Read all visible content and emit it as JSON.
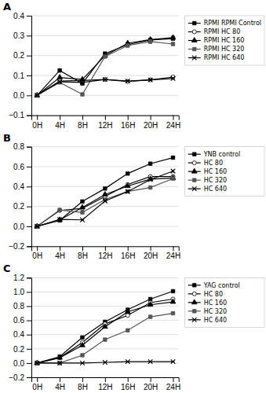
{
  "chart_data": [
    {
      "type": "line",
      "title": "A",
      "x": [
        0,
        4,
        8,
        12,
        16,
        20,
        24
      ],
      "xlim": [
        -1,
        25
      ],
      "xticks": [
        {
          "value": 0,
          "label": "0H"
        },
        {
          "value": 4,
          "label": "4H"
        },
        {
          "value": 8,
          "label": "8H"
        },
        {
          "value": 12,
          "label": "12H"
        },
        {
          "value": 16,
          "label": "16H"
        },
        {
          "value": 20,
          "label": "20H"
        },
        {
          "value": 24,
          "label": "24H"
        }
      ],
      "ylim": [
        -0.1,
        0.4
      ],
      "yticks": [
        {
          "value": -0.1,
          "label": "−0.1"
        },
        {
          "value": 0,
          "label": "0.0"
        },
        0.1,
        0.2,
        0.3,
        0.4
      ],
      "grid": true,
      "legend": "right",
      "series": [
        {
          "name": "RPMI RPMI Control",
          "color": "#000000",
          "marker": "square",
          "line_style": "solid",
          "values": [
            0.0,
            0.125,
            0.06,
            0.21,
            0.255,
            0.278,
            0.285
          ],
          "errors": [
            0.003,
            0.007,
            0.007,
            0.007,
            0.007,
            0.009,
            0.007
          ]
        },
        {
          "name": "RPMI HC 80",
          "color": "#000000",
          "marker": "circle-open",
          "line_style": "solid",
          "values": [
            0.0,
            0.072,
            0.075,
            0.08,
            0.07,
            0.078,
            0.092
          ],
          "errors": [
            0.002,
            0.004,
            0.004,
            0.004,
            0.003,
            0.003,
            0.004
          ]
        },
        {
          "name": "RPMI HC 160",
          "color": "#000000",
          "marker": "triangle",
          "line_style": "solid",
          "values": [
            0.0,
            0.09,
            0.08,
            0.2,
            0.262,
            0.28,
            0.29
          ],
          "errors": [
            0.002,
            0.005,
            0.005,
            0.006,
            0.006,
            0.008,
            0.007
          ]
        },
        {
          "name": "RPMI HC 320",
          "color": "#555555",
          "marker": "square",
          "line_style": "solid",
          "values": [
            0.0,
            0.065,
            0.005,
            0.195,
            0.25,
            0.27,
            0.258
          ],
          "errors": [
            0.002,
            0.004,
            0.003,
            0.006,
            0.007,
            0.009,
            0.007
          ]
        },
        {
          "name": "RPMI HC 640",
          "color": "#000000",
          "marker": "x",
          "line_style": "solid",
          "values": [
            0.0,
            0.068,
            0.065,
            0.08,
            0.072,
            0.078,
            0.085
          ],
          "errors": [
            0.002,
            0.004,
            0.004,
            0.004,
            0.003,
            0.003,
            0.004
          ]
        }
      ]
    },
    {
      "type": "line",
      "title": "B",
      "x": [
        0,
        4,
        8,
        12,
        16,
        20,
        24
      ],
      "xlim": [
        -1,
        25
      ],
      "xticks": [
        {
          "value": 0,
          "label": "0H"
        },
        {
          "value": 4,
          "label": "4H"
        },
        {
          "value": 8,
          "label": "8H"
        },
        {
          "value": 12,
          "label": "12H"
        },
        {
          "value": 16,
          "label": "16H"
        },
        {
          "value": 20,
          "label": "20H"
        },
        {
          "value": 24,
          "label": "24H"
        }
      ],
      "ylim": [
        -0.2,
        0.8
      ],
      "yticks": [
        {
          "value": -0.2,
          "label": "−0.2"
        },
        {
          "value": 0,
          "label": "0.0"
        },
        0.2,
        0.4,
        0.6,
        0.8
      ],
      "grid": true,
      "legend": "right",
      "series": [
        {
          "name": "YNB control",
          "color": "#000000",
          "marker": "square",
          "line_style": "solid",
          "values": [
            0.0,
            0.06,
            0.25,
            0.38,
            0.53,
            0.63,
            0.69
          ],
          "errors": [
            0.003,
            0.004,
            0.007,
            0.009,
            0.009,
            0.011,
            0.011
          ]
        },
        {
          "name": "HC 80",
          "color": "#000000",
          "marker": "circle-open",
          "line_style": "solid",
          "values": [
            0.0,
            0.16,
            0.18,
            0.3,
            0.42,
            0.5,
            0.5
          ],
          "errors": [
            0.003,
            0.006,
            0.007,
            0.009,
            0.009,
            0.011,
            0.011
          ]
        },
        {
          "name": "HC 160",
          "color": "#000000",
          "marker": "triangle",
          "line_style": "solid",
          "values": [
            0.0,
            0.065,
            0.19,
            0.32,
            0.405,
            0.475,
            0.485
          ],
          "errors": [
            0.002,
            0.004,
            0.007,
            0.009,
            0.009,
            0.009,
            0.009
          ]
        },
        {
          "name": "HC 320",
          "color": "#555555",
          "marker": "square",
          "line_style": "solid",
          "values": [
            0.0,
            0.165,
            0.14,
            0.27,
            0.35,
            0.39,
            0.48
          ],
          "errors": [
            0.002,
            0.006,
            0.006,
            0.008,
            0.008,
            0.009,
            0.009
          ]
        },
        {
          "name": "HC 640",
          "color": "#000000",
          "marker": "x",
          "line_style": "solid",
          "values": [
            0.0,
            0.07,
            0.065,
            0.255,
            0.35,
            0.47,
            0.555
          ],
          "errors": [
            0.002,
            0.004,
            0.004,
            0.008,
            0.008,
            0.009,
            0.009
          ]
        }
      ]
    },
    {
      "type": "line",
      "title": "C",
      "x": [
        0,
        4,
        8,
        12,
        16,
        20,
        24
      ],
      "xlim": [
        -1,
        25
      ],
      "xticks": [
        {
          "value": 0,
          "label": "0H"
        },
        {
          "value": 4,
          "label": "4H"
        },
        {
          "value": 8,
          "label": "8H"
        },
        {
          "value": 12,
          "label": "12H"
        },
        {
          "value": 16,
          "label": "16H"
        },
        {
          "value": 20,
          "label": "20H"
        },
        {
          "value": 24,
          "label": "24H"
        }
      ],
      "ylim": [
        -0.2,
        1.2
      ],
      "yticks": [
        {
          "value": -0.2,
          "label": "−0.2"
        },
        {
          "value": 0,
          "label": "0.0"
        },
        0.2,
        0.4,
        0.6,
        0.8,
        {
          "value": 1.0,
          "label": "1.0"
        },
        1.2
      ],
      "grid": true,
      "legend": "right",
      "series": [
        {
          "name": "YAG control",
          "color": "#000000",
          "marker": "square",
          "line_style": "solid",
          "values": [
            0.0,
            0.09,
            0.36,
            0.58,
            0.75,
            0.9,
            1.01
          ],
          "errors": [
            0.003,
            0.005,
            0.009,
            0.011,
            0.011,
            0.013,
            0.013
          ]
        },
        {
          "name": "HC 80",
          "color": "#000000",
          "marker": "circle-open",
          "line_style": "solid",
          "values": [
            0.0,
            0.075,
            0.29,
            0.55,
            0.67,
            0.85,
            0.9
          ],
          "errors": [
            0.002,
            0.004,
            0.008,
            0.01,
            0.011,
            0.012,
            0.012
          ]
        },
        {
          "name": "HC 160",
          "color": "#000000",
          "marker": "triangle",
          "line_style": "solid",
          "values": [
            0.0,
            0.075,
            0.25,
            0.51,
            0.72,
            0.82,
            0.86
          ],
          "errors": [
            0.002,
            0.004,
            0.008,
            0.01,
            0.011,
            0.012,
            0.012
          ]
        },
        {
          "name": "HC 320",
          "color": "#555555",
          "marker": "square",
          "line_style": "solid",
          "values": [
            0.0,
            0.0,
            0.11,
            0.33,
            0.46,
            0.65,
            0.7
          ],
          "errors": [
            0.002,
            0.002,
            0.005,
            0.008,
            0.009,
            0.01,
            0.01
          ]
        },
        {
          "name": "HC 640",
          "color": "#000000",
          "marker": "x",
          "line_style": "solid",
          "values": [
            0.0,
            0.0,
            0.0,
            0.01,
            0.02,
            0.02,
            0.02
          ],
          "errors": [
            0.001,
            0.001,
            0.001,
            0.001,
            0.001,
            0.001,
            0.001
          ]
        }
      ]
    }
  ]
}
